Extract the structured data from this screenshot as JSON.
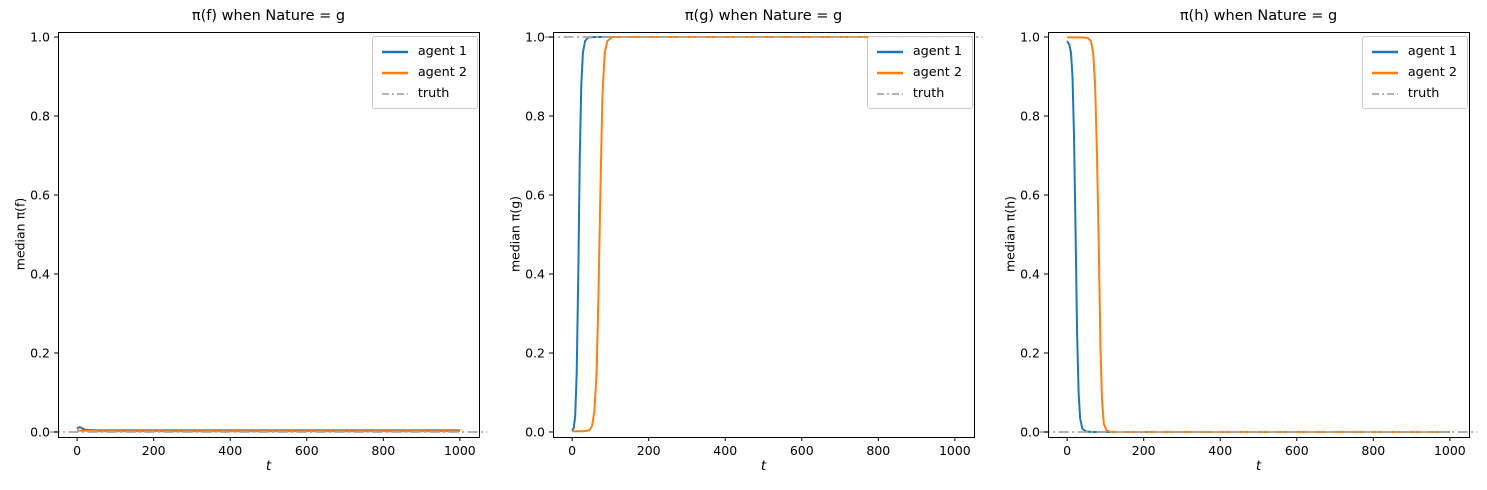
{
  "figure": {
    "background": "#ffffff"
  },
  "colors": {
    "agent1": "#1f77b4",
    "agent2": "#ff7f0e",
    "truth": "#a9a9a9",
    "spine": "#000000"
  },
  "chart_data": [
    {
      "type": "line",
      "title": "π(f) when Nature = g",
      "xlabel": "t",
      "ylabel": "median π(f)",
      "xlim": [
        -50,
        1050
      ],
      "ylim": [
        -0.0127,
        1.0127
      ],
      "xticks": [
        0,
        200,
        400,
        600,
        800,
        1000
      ],
      "xtick_labels": [
        "0",
        "200",
        "400",
        "600",
        "800",
        "1000"
      ],
      "yticks": [
        0,
        0.2,
        0.4,
        0.6,
        0.8,
        1.0
      ],
      "ytick_labels": [
        "0.0",
        "0.2",
        "0.4",
        "0.6",
        "0.8",
        "1.0"
      ],
      "grid": false,
      "legend": {
        "position": "upper right",
        "entries": [
          "agent 1",
          "agent 2",
          "truth"
        ]
      },
      "series": [
        {
          "name": "agent 1",
          "color": "#1f77b4",
          "style": "solid",
          "width": 2,
          "points": [
            [
              0,
              0.008
            ],
            [
              3,
              0.011
            ],
            [
              6,
              0.012
            ],
            [
              10,
              0.011
            ],
            [
              15,
              0.008
            ],
            [
              20,
              0.006
            ],
            [
              30,
              0.005
            ],
            [
              50,
              0.004
            ],
            [
              100,
              0.004
            ],
            [
              200,
              0.004
            ],
            [
              400,
              0.004
            ],
            [
              600,
              0.004
            ],
            [
              800,
              0.004
            ],
            [
              1000,
              0.004
            ]
          ]
        },
        {
          "name": "agent 2",
          "color": "#ff7f0e",
          "style": "solid",
          "width": 2,
          "points": [
            [
              0,
              0.004
            ],
            [
              10,
              0.003
            ],
            [
              30,
              0.003
            ],
            [
              60,
              0.002
            ],
            [
              100,
              0.002
            ],
            [
              300,
              0.002
            ],
            [
              600,
              0.002
            ],
            [
              1000,
              0.002
            ]
          ]
        },
        {
          "name": "truth",
          "color": "#a9a9a9",
          "style": "dashdot",
          "width": 1.7,
          "points": [
            [
              -72,
              0
            ],
            [
              1072,
              0
            ]
          ]
        }
      ]
    },
    {
      "type": "line",
      "title": "π(g) when Nature = g",
      "xlabel": "t",
      "ylabel": "median π(g)",
      "xlim": [
        -50,
        1050
      ],
      "ylim": [
        -0.0127,
        1.0127
      ],
      "xticks": [
        0,
        200,
        400,
        600,
        800,
        1000
      ],
      "xtick_labels": [
        "0",
        "200",
        "400",
        "600",
        "800",
        "1000"
      ],
      "yticks": [
        0,
        0.2,
        0.4,
        0.6,
        0.8,
        1.0
      ],
      "ytick_labels": [
        "0.0",
        "0.2",
        "0.4",
        "0.6",
        "0.8",
        "1.0"
      ],
      "grid": false,
      "legend": {
        "position": "upper right",
        "entries": [
          "agent 1",
          "agent 2",
          "truth"
        ]
      },
      "series": [
        {
          "name": "agent 1",
          "color": "#1f77b4",
          "style": "solid",
          "width": 2,
          "points": [
            [
              0,
              0.003
            ],
            [
              4,
              0.01
            ],
            [
              8,
              0.04
            ],
            [
              12,
              0.15
            ],
            [
              16,
              0.4
            ],
            [
              20,
              0.7
            ],
            [
              24,
              0.88
            ],
            [
              28,
              0.96
            ],
            [
              34,
              0.99
            ],
            [
              42,
              0.999
            ],
            [
              60,
              1
            ],
            [
              200,
              1
            ],
            [
              500,
              1
            ],
            [
              1000,
              1
            ]
          ]
        },
        {
          "name": "agent 2",
          "color": "#ff7f0e",
          "style": "solid",
          "width": 2,
          "points": [
            [
              0,
              0.002
            ],
            [
              30,
              0.002
            ],
            [
              45,
              0.004
            ],
            [
              52,
              0.015
            ],
            [
              58,
              0.05
            ],
            [
              64,
              0.15
            ],
            [
              69,
              0.35
            ],
            [
              74,
              0.62
            ],
            [
              79,
              0.85
            ],
            [
              85,
              0.96
            ],
            [
              92,
              0.99
            ],
            [
              105,
              1
            ],
            [
              300,
              1
            ],
            [
              700,
              1
            ],
            [
              1000,
              1
            ]
          ]
        },
        {
          "name": "truth",
          "color": "#a9a9a9",
          "style": "dashdot",
          "width": 1.7,
          "points": [
            [
              -72,
              1
            ],
            [
              1072,
              1
            ]
          ]
        }
      ]
    },
    {
      "type": "line",
      "title": "π(h) when Nature = g",
      "xlabel": "t",
      "ylabel": "median π(h)",
      "xlim": [
        -50,
        1050
      ],
      "ylim": [
        -0.0127,
        1.0127
      ],
      "xticks": [
        0,
        200,
        400,
        600,
        800,
        1000
      ],
      "xtick_labels": [
        "0",
        "200",
        "400",
        "600",
        "800",
        "1000"
      ],
      "yticks": [
        0,
        0.2,
        0.4,
        0.6,
        0.8,
        1.0
      ],
      "ytick_labels": [
        "0.0",
        "0.2",
        "0.4",
        "0.6",
        "0.8",
        "1.0"
      ],
      "grid": false,
      "legend": {
        "position": "upper right",
        "entries": [
          "agent 1",
          "agent 2",
          "truth"
        ]
      },
      "series": [
        {
          "name": "agent 1",
          "color": "#1f77b4",
          "style": "solid",
          "width": 2,
          "points": [
            [
              0,
              0.99
            ],
            [
              6,
              0.98
            ],
            [
              10,
              0.96
            ],
            [
              14,
              0.9
            ],
            [
              18,
              0.75
            ],
            [
              22,
              0.5
            ],
            [
              26,
              0.25
            ],
            [
              30,
              0.1
            ],
            [
              34,
              0.035
            ],
            [
              40,
              0.008
            ],
            [
              50,
              0.001
            ],
            [
              70,
              0
            ],
            [
              300,
              0
            ],
            [
              700,
              0
            ],
            [
              1000,
              0
            ]
          ]
        },
        {
          "name": "agent 2",
          "color": "#ff7f0e",
          "style": "solid",
          "width": 2,
          "points": [
            [
              0,
              0.999
            ],
            [
              40,
              0.999
            ],
            [
              55,
              0.997
            ],
            [
              62,
              0.99
            ],
            [
              68,
              0.96
            ],
            [
              73,
              0.88
            ],
            [
              78,
              0.7
            ],
            [
              83,
              0.45
            ],
            [
              87,
              0.22
            ],
            [
              91,
              0.08
            ],
            [
              96,
              0.02
            ],
            [
              103,
              0.004
            ],
            [
              115,
              0
            ],
            [
              400,
              0
            ],
            [
              800,
              0
            ],
            [
              1000,
              0
            ]
          ]
        },
        {
          "name": "truth",
          "color": "#a9a9a9",
          "style": "dashdot",
          "width": 1.7,
          "points": [
            [
              -72,
              0
            ],
            [
              1072,
              0
            ]
          ]
        }
      ]
    }
  ]
}
